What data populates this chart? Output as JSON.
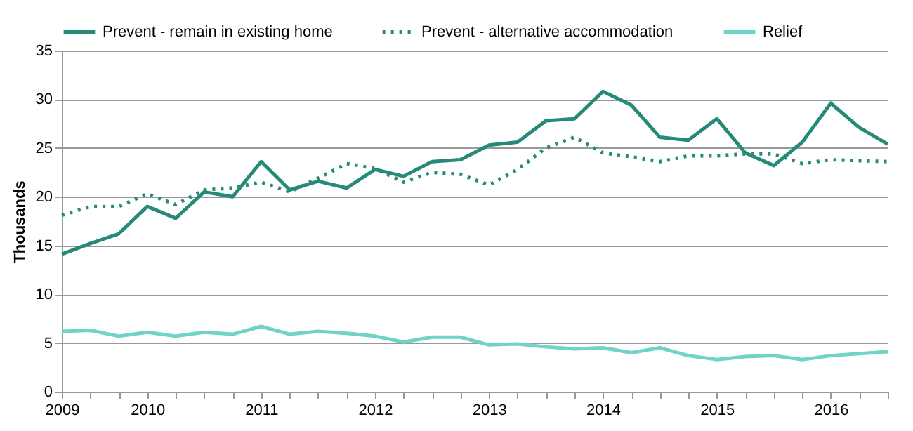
{
  "chart_data": {
    "type": "line",
    "ylabel": "Thousands",
    "categories": [
      "2009",
      null,
      null,
      "2010",
      null,
      null,
      null,
      "2011",
      null,
      null,
      null,
      "2012",
      null,
      null,
      null,
      "2013",
      null,
      null,
      null,
      "2014",
      null,
      null,
      null,
      "2015",
      null,
      null,
      null,
      "2016",
      null,
      null
    ],
    "series": [
      {
        "name": "Prevent - remain in existing home",
        "color": "#268a78",
        "line_style": "solid",
        "values": [
          14.1,
          15.2,
          16.2,
          19.0,
          17.8,
          20.5,
          20.0,
          23.6,
          20.7,
          21.6,
          20.9,
          22.8,
          22.1,
          23.6,
          23.8,
          25.3,
          25.6,
          27.8,
          28.0,
          30.8,
          29.4,
          26.1,
          25.8,
          28.0,
          24.5,
          23.2,
          25.6,
          29.6,
          27.1,
          25.4
        ]
      },
      {
        "name": "Prevent - alternative accommodation",
        "color": "#268a78",
        "line_style": "dotted",
        "values": [
          18.1,
          19.0,
          19.0,
          20.3,
          19.2,
          20.7,
          20.9,
          21.5,
          20.5,
          21.9,
          23.4,
          22.9,
          21.5,
          22.5,
          22.3,
          21.2,
          22.8,
          25.0,
          26.1,
          24.5,
          24.1,
          23.6,
          24.2,
          24.2,
          24.4,
          24.4,
          23.4,
          23.8,
          23.7,
          23.6
        ]
      },
      {
        "name": "Relief",
        "color": "#6fd3c6",
        "line_style": "solid",
        "values": [
          6.2,
          6.3,
          5.7,
          6.1,
          5.7,
          6.1,
          5.9,
          6.7,
          5.9,
          6.2,
          6.0,
          5.7,
          5.1,
          5.6,
          5.6,
          4.8,
          4.9,
          4.6,
          4.4,
          4.5,
          4.0,
          4.5,
          3.7,
          3.3,
          3.6,
          3.7,
          3.3,
          3.7,
          3.9,
          4.1
        ]
      }
    ],
    "ylim": [
      0,
      35
    ],
    "yticks": [
      0,
      5,
      10,
      15,
      20,
      25,
      30,
      35
    ],
    "grid": "y",
    "legend": "top",
    "marker": "none"
  }
}
